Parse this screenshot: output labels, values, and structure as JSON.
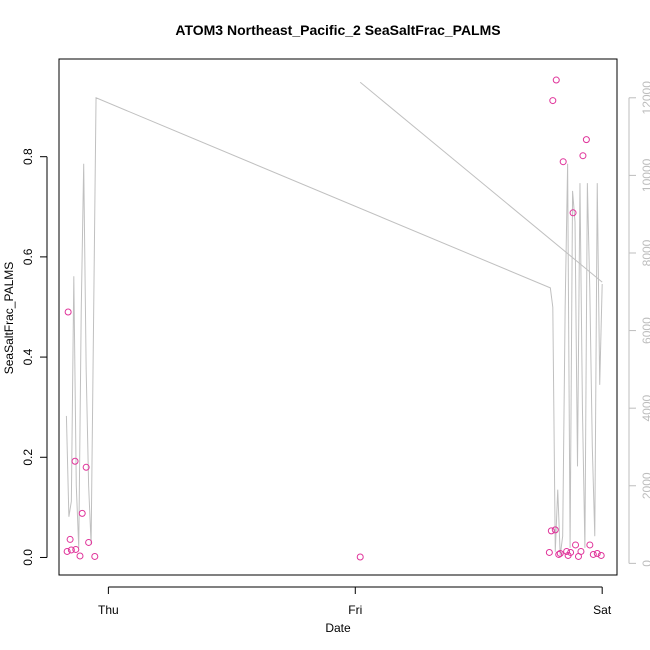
{
  "chart_data": {
    "type": "scatter",
    "title": "ATOM3 Northeast_Pacific_2 SeaSaltFrac_PALMS",
    "xlabel": "Date",
    "ylabel": "SeaSaltFrac_PALMS",
    "x_ticks": [
      {
        "label": "Thu",
        "value": 0
      },
      {
        "label": "Fri",
        "value": 1
      },
      {
        "label": "Sat",
        "value": 2
      }
    ],
    "xlim": [
      -0.2,
      2.06
    ],
    "ylim": [
      -0.035,
      0.995
    ],
    "y_ticks": [
      0.0,
      0.2,
      0.4,
      0.6,
      0.8
    ],
    "y2lim": [
      -300,
      13000
    ],
    "y2_ticks": [
      0,
      2000,
      4000,
      6000,
      8000,
      10000,
      12000
    ],
    "grid": false,
    "series": [
      {
        "kind": "points",
        "axis": "left",
        "color": "#e0339a",
        "x": [
          -0.167,
          -0.163,
          -0.155,
          -0.15,
          -0.135,
          -0.132,
          -0.115,
          -0.106,
          -0.09,
          -0.08,
          -0.055,
          1.02,
          1.786,
          1.794,
          1.8,
          1.81,
          1.814,
          1.824,
          1.83,
          1.842,
          1.856,
          1.862,
          1.872,
          1.882,
          1.892,
          1.904,
          1.914,
          1.922,
          1.936,
          1.95,
          1.964,
          1.98,
          1.996
        ],
        "y": [
          0.012,
          0.49,
          0.036,
          0.015,
          0.192,
          0.016,
          0.003,
          0.088,
          0.18,
          0.03,
          0.002,
          0.001,
          0.01,
          0.053,
          0.912,
          0.055,
          0.953,
          0.006,
          0.008,
          0.79,
          0.012,
          0.004,
          0.01,
          0.688,
          0.025,
          0.002,
          0.012,
          0.802,
          0.834,
          0.025,
          0.006,
          0.008,
          0.004
        ]
      },
      {
        "kind": "line",
        "axis": "right",
        "color": "#c0c0c0",
        "x": [
          -0.17,
          -0.16,
          -0.15,
          -0.14,
          -0.13,
          -0.12,
          -0.11,
          -0.1,
          -0.09,
          -0.08,
          -0.07,
          -0.05,
          1.79,
          1.8,
          1.81,
          1.82,
          1.83,
          1.84,
          1.85,
          1.86,
          1.87,
          1.88,
          1.89,
          1.9,
          1.91,
          1.92,
          1.93,
          1.94,
          1.95,
          1.96,
          1.97,
          1.98,
          1.99,
          2.0
        ],
        "y": [
          3800,
          1200,
          1600,
          7400,
          2000,
          400,
          6500,
          10300,
          5000,
          2000,
          500,
          12000,
          7100,
          6600,
          300,
          1900,
          200,
          700,
          6600,
          10300,
          400,
          9600,
          8800,
          2500,
          9800,
          4000,
          400,
          9800,
          7000,
          3000,
          700,
          9800,
          4600,
          7200
        ]
      },
      {
        "kind": "line",
        "axis": "right",
        "color": "#c0c0c0",
        "x": [
          1.02,
          2.0
        ],
        "y": [
          12400,
          7250
        ]
      }
    ]
  }
}
